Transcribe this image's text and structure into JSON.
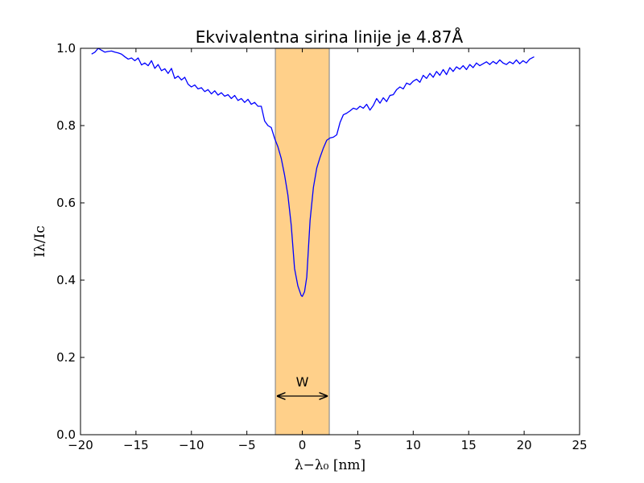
{
  "chart_data": {
    "type": "line",
    "title": "Ekvivalentna sirina linije je 4.87Å",
    "xlabel": "λ−λ₀ [nm]",
    "ylabel": "Iλ/Ic",
    "xlim": [
      -20,
      25
    ],
    "ylim": [
      0,
      1.0
    ],
    "xticks": [
      -20,
      -15,
      -10,
      -5,
      0,
      5,
      10,
      15,
      20,
      25
    ],
    "yticks": [
      0.0,
      0.2,
      0.4,
      0.6,
      0.8,
      1.0
    ],
    "xtick_labels": [
      "−20",
      "−15",
      "−10",
      "−5",
      "0",
      "5",
      "10",
      "15",
      "20",
      "25"
    ],
    "ytick_labels": [
      "0.0",
      "0.2",
      "0.4",
      "0.6",
      "0.8",
      "1.0"
    ],
    "grid": false,
    "shaded_band": {
      "x0": -2.43,
      "x1": 2.43,
      "color": "#ffd08a",
      "edge_color": "#8f8f8f"
    },
    "annotation": {
      "text": "W",
      "arrow_x0": -2.3,
      "arrow_x1": 2.3,
      "arrow_y": 0.1,
      "text_y": 0.125
    },
    "series": [
      {
        "color": "#0000ff",
        "x": [
          -19.0,
          -18.7,
          -18.4,
          -18.1,
          -17.8,
          -17.5,
          -17.2,
          -16.9,
          -16.6,
          -16.3,
          -16.0,
          -15.7,
          -15.4,
          -15.1,
          -14.8,
          -14.5,
          -14.2,
          -13.9,
          -13.6,
          -13.3,
          -13.0,
          -12.7,
          -12.4,
          -12.1,
          -11.8,
          -11.5,
          -11.2,
          -10.9,
          -10.6,
          -10.3,
          -10.0,
          -9.7,
          -9.4,
          -9.1,
          -8.8,
          -8.5,
          -8.2,
          -7.9,
          -7.6,
          -7.3,
          -7.0,
          -6.7,
          -6.4,
          -6.1,
          -5.8,
          -5.5,
          -5.2,
          -4.9,
          -4.6,
          -4.3,
          -4.0,
          -3.7,
          -3.4,
          -3.1,
          -2.8,
          -2.5,
          -2.2,
          -1.9,
          -1.6,
          -1.3,
          -1.0,
          -0.7,
          -0.4,
          -0.1,
          0.0,
          0.2,
          0.4,
          0.7,
          1.0,
          1.3,
          1.6,
          1.9,
          2.2,
          2.5,
          2.8,
          3.1,
          3.4,
          3.7,
          4.0,
          4.3,
          4.6,
          4.9,
          5.2,
          5.5,
          5.8,
          6.1,
          6.4,
          6.7,
          7.0,
          7.3,
          7.6,
          7.9,
          8.2,
          8.5,
          8.8,
          9.1,
          9.4,
          9.7,
          10.0,
          10.3,
          10.6,
          10.9,
          11.2,
          11.5,
          11.8,
          12.1,
          12.4,
          12.7,
          13.0,
          13.3,
          13.6,
          13.9,
          14.2,
          14.5,
          14.8,
          15.1,
          15.4,
          15.7,
          16.0,
          16.3,
          16.6,
          16.9,
          17.2,
          17.5,
          17.8,
          18.1,
          18.4,
          18.7,
          19.0,
          19.3,
          19.6,
          19.9,
          20.2,
          20.5,
          20.9
        ],
        "y": [
          0.985,
          0.99,
          1.0,
          0.995,
          0.99,
          0.992,
          0.993,
          0.99,
          0.988,
          0.985,
          0.978,
          0.972,
          0.975,
          0.968,
          0.975,
          0.957,
          0.962,
          0.955,
          0.968,
          0.948,
          0.958,
          0.942,
          0.947,
          0.935,
          0.948,
          0.922,
          0.928,
          0.918,
          0.925,
          0.907,
          0.9,
          0.905,
          0.895,
          0.898,
          0.888,
          0.893,
          0.882,
          0.89,
          0.879,
          0.885,
          0.876,
          0.88,
          0.87,
          0.878,
          0.865,
          0.87,
          0.86,
          0.868,
          0.855,
          0.86,
          0.85,
          0.85,
          0.812,
          0.8,
          0.795,
          0.767,
          0.745,
          0.715,
          0.672,
          0.62,
          0.542,
          0.43,
          0.385,
          0.36,
          0.358,
          0.37,
          0.408,
          0.555,
          0.64,
          0.69,
          0.718,
          0.742,
          0.762,
          0.768,
          0.77,
          0.776,
          0.808,
          0.828,
          0.832,
          0.838,
          0.845,
          0.842,
          0.85,
          0.845,
          0.855,
          0.84,
          0.852,
          0.87,
          0.858,
          0.872,
          0.862,
          0.878,
          0.88,
          0.893,
          0.9,
          0.895,
          0.91,
          0.906,
          0.915,
          0.92,
          0.912,
          0.93,
          0.922,
          0.935,
          0.925,
          0.94,
          0.93,
          0.945,
          0.932,
          0.95,
          0.94,
          0.952,
          0.946,
          0.955,
          0.945,
          0.958,
          0.95,
          0.962,
          0.955,
          0.96,
          0.965,
          0.958,
          0.966,
          0.96,
          0.97,
          0.962,
          0.958,
          0.965,
          0.96,
          0.97,
          0.96,
          0.968,
          0.962,
          0.972,
          0.978
        ]
      }
    ]
  }
}
